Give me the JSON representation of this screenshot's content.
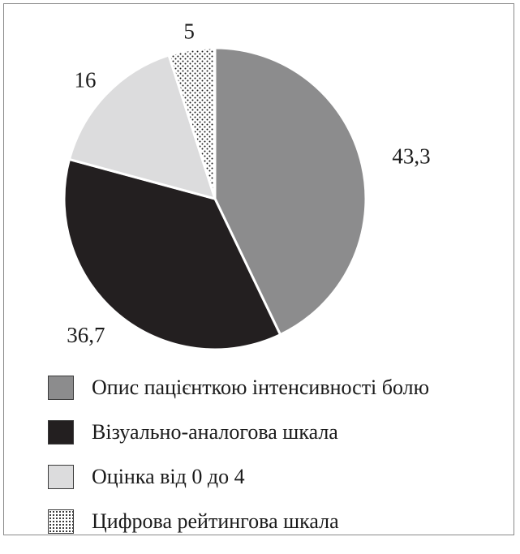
{
  "chart_data": {
    "type": "pie",
    "start_angle_deg": 0,
    "direction": "clockwise",
    "series": [
      {
        "label": "Опис пацієнткою інтенсивності болю",
        "value": 43.3,
        "value_label": "43,3",
        "fill": "#8c8c8d",
        "pattern": "none"
      },
      {
        "label": "Візуально-аналогова шкала",
        "value": 36.7,
        "value_label": "36,7",
        "fill": "#231f20",
        "pattern": "none"
      },
      {
        "label": "Оцінка від 0 до 4",
        "value": 16,
        "value_label": "16",
        "fill": "#dcdcdd",
        "pattern": "none"
      },
      {
        "label": "Цифрова рейтингова шкала",
        "value": 5,
        "value_label": "5",
        "fill": "#ffffff",
        "pattern": "dots"
      }
    ],
    "legend_position": "bottom"
  }
}
